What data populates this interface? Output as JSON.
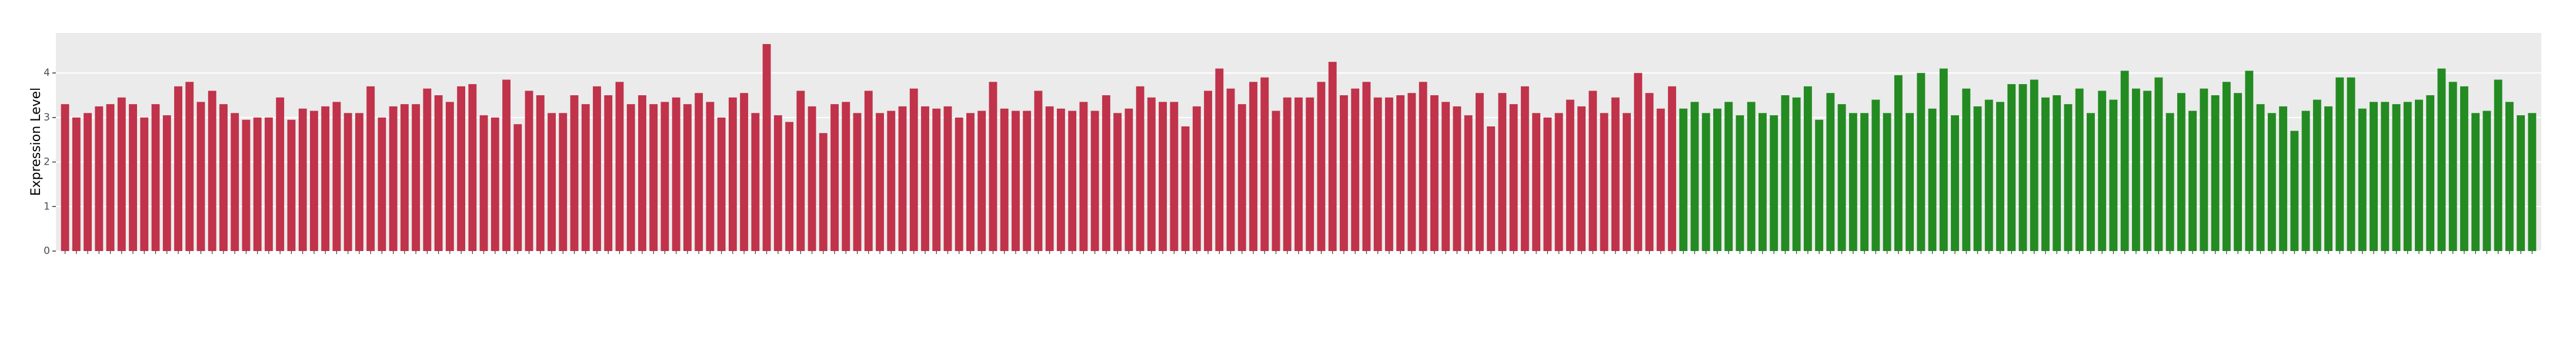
{
  "chart_data": {
    "type": "bar",
    "y_label": "Expression Level",
    "ylim": [
      0,
      4.9
    ],
    "yticks": [
      0,
      1,
      2,
      3,
      4
    ],
    "grid": true,
    "series": [
      {
        "color": "#c0334a",
        "values": [
          3.3,
          3.0,
          3.1,
          3.25,
          3.3,
          3.45,
          3.3,
          3.0,
          3.3,
          3.05,
          3.7,
          3.8,
          3.35,
          3.6,
          3.3,
          3.1,
          2.95,
          3.0,
          3.0,
          3.45,
          2.95,
          3.2,
          3.15,
          3.25,
          3.35,
          3.1,
          3.1,
          3.7,
          3.0,
          3.25,
          3.3,
          3.3,
          3.65,
          3.5,
          3.35,
          3.7,
          3.75,
          3.05,
          3.0,
          3.85,
          2.85,
          3.6,
          3.5,
          3.1,
          3.1,
          3.5,
          3.3,
          3.7,
          3.5,
          3.8,
          3.3,
          3.5,
          3.3,
          3.35,
          3.45,
          3.3,
          3.55,
          3.35,
          3.0,
          3.45,
          3.55,
          3.1,
          4.65,
          3.05,
          2.9,
          3.6,
          3.25,
          2.65,
          3.3,
          3.35,
          3.1,
          3.6,
          3.1,
          3.15,
          3.25,
          3.65,
          3.25,
          3.2,
          3.25,
          3.0,
          3.1,
          3.15,
          3.8,
          3.2,
          3.15,
          3.15,
          3.6,
          3.25,
          3.2,
          3.15,
          3.35,
          3.15,
          3.5,
          3.1,
          3.2,
          3.7,
          3.45,
          3.35,
          3.35,
          2.8,
          3.25,
          3.6,
          4.1,
          3.65,
          3.3,
          3.8,
          3.9,
          3.15,
          3.45,
          3.45,
          3.45,
          3.8,
          4.25,
          3.5,
          3.65,
          3.8,
          3.45,
          3.45,
          3.5,
          3.55,
          3.8,
          3.5,
          3.35,
          3.25,
          3.05,
          3.55,
          2.8,
          3.55,
          3.3,
          3.7,
          3.1,
          3.0,
          3.1,
          3.4,
          3.25,
          3.6,
          3.1,
          3.45,
          3.1,
          4.0,
          3.55,
          3.2,
          3.7
        ]
      },
      {
        "color": "#238b22",
        "values": [
          3.2,
          3.35,
          3.1,
          3.2,
          3.35,
          3.05,
          3.35,
          3.1,
          3.05,
          3.5,
          3.45,
          3.7,
          2.95,
          3.55,
          3.3,
          3.1,
          3.1,
          3.4,
          3.1,
          3.95,
          3.1,
          4.0,
          3.2,
          4.1,
          3.05,
          3.65,
          3.25,
          3.4,
          3.35,
          3.75,
          3.75,
          3.85,
          3.45,
          3.5,
          3.3,
          3.65,
          3.1,
          3.6,
          3.4,
          4.05,
          3.65,
          3.6,
          3.9,
          3.1,
          3.55,
          3.15,
          3.65,
          3.5,
          3.8,
          3.55,
          4.05,
          3.3,
          3.1,
          3.25,
          2.7,
          3.15,
          3.4,
          3.25,
          3.9,
          3.9,
          3.2,
          3.35,
          3.35,
          3.3,
          3.35,
          3.4,
          3.5,
          4.1,
          3.8,
          3.7,
          3.1,
          3.15,
          3.85,
          3.35,
          3.05,
          3.1
        ]
      }
    ]
  }
}
